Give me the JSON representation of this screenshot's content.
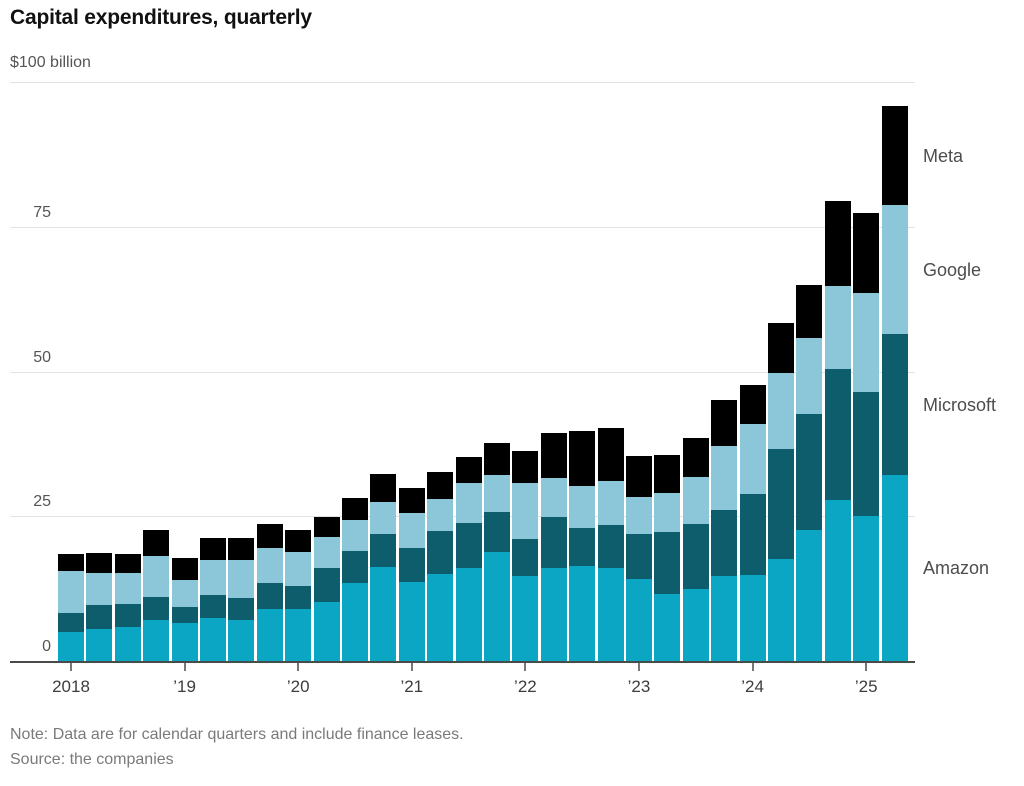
{
  "title": "Capital expenditures, quarterly",
  "note": "Note: Data are for calendar quarters and include finance leases.",
  "source": "Source: the companies",
  "y_axis": {
    "unit_label": "$100 billion",
    "max": 100,
    "ticks": [
      {
        "value": 75,
        "label": "75"
      },
      {
        "value": 50,
        "label": "50"
      },
      {
        "value": 25,
        "label": "25"
      },
      {
        "value": 0,
        "label": "0"
      }
    ]
  },
  "x_axis": {
    "tick_labels": [
      "2018",
      "’19",
      "’20",
      "’21",
      "’22",
      "’23",
      "’24",
      "’25"
    ]
  },
  "legend": [
    {
      "label": "Meta",
      "color": "#000000"
    },
    {
      "label": "Google",
      "color": "#8cc7d9"
    },
    {
      "label": "Microsoft",
      "color": "#0e5d6d"
    },
    {
      "label": "Amazon",
      "color": "#0aa6c4"
    }
  ],
  "chart_data": {
    "type": "bar",
    "stacked": true,
    "title": "Capital expenditures, quarterly",
    "unit": "USD billions",
    "ylim": [
      0,
      100
    ],
    "y_gridlines": [
      25,
      50,
      75,
      100
    ],
    "grid": true,
    "legend_position": "right",
    "categories": [
      "2018 Q1",
      "2018 Q2",
      "2018 Q3",
      "2018 Q4",
      "2019 Q1",
      "2019 Q2",
      "2019 Q3",
      "2019 Q4",
      "2020 Q1",
      "2020 Q2",
      "2020 Q3",
      "2020 Q4",
      "2021 Q1",
      "2021 Q2",
      "2021 Q3",
      "2021 Q4",
      "2022 Q1",
      "2022 Q2",
      "2022 Q3",
      "2022 Q4",
      "2023 Q1",
      "2023 Q2",
      "2023 Q3",
      "2023 Q4",
      "2024 Q1",
      "2024 Q2",
      "2024 Q3",
      "2024 Q4",
      "2025 Q1",
      "2025 Q2"
    ],
    "series": [
      {
        "name": "Amazon",
        "color": "#0aa6c4",
        "values": [
          5.0,
          5.6,
          5.9,
          7.0,
          6.5,
          7.4,
          7.0,
          9.0,
          9.0,
          10.2,
          13.5,
          16.2,
          13.6,
          15.0,
          16.0,
          18.9,
          14.7,
          16.1,
          16.4,
          16.0,
          14.2,
          11.5,
          12.5,
          14.6,
          14.9,
          17.6,
          22.6,
          27.8,
          25.0,
          32.2
        ]
      },
      {
        "name": "Microsoft",
        "color": "#0e5d6d",
        "values": [
          3.3,
          4.1,
          4.0,
          4.1,
          2.9,
          4.0,
          3.8,
          4.4,
          3.9,
          5.8,
          5.5,
          5.8,
          6.0,
          7.4,
          7.9,
          6.8,
          6.3,
          8.7,
          6.6,
          7.5,
          7.8,
          10.7,
          11.2,
          11.5,
          14.0,
          19.0,
          20.0,
          22.6,
          21.4,
          24.2
        ]
      },
      {
        "name": "Google",
        "color": "#8cc7d9",
        "values": [
          7.3,
          5.5,
          5.3,
          7.1,
          4.6,
          6.1,
          6.7,
          6.1,
          6.0,
          5.4,
          5.4,
          5.5,
          5.9,
          5.5,
          6.8,
          6.4,
          9.8,
          6.8,
          7.3,
          7.6,
          6.3,
          6.9,
          8.1,
          11.0,
          12.0,
          13.2,
          13.1,
          14.3,
          17.2,
          22.4
        ]
      },
      {
        "name": "Meta",
        "color": "#000000",
        "values": [
          2.8,
          3.5,
          3.3,
          4.4,
          3.8,
          3.8,
          3.7,
          4.2,
          3.7,
          3.4,
          3.7,
          4.8,
          4.3,
          4.7,
          4.5,
          5.5,
          5.5,
          7.7,
          9.5,
          9.2,
          7.1,
          6.4,
          6.8,
          7.9,
          6.7,
          8.5,
          9.2,
          14.8,
          13.7,
          17.0
        ]
      }
    ]
  }
}
